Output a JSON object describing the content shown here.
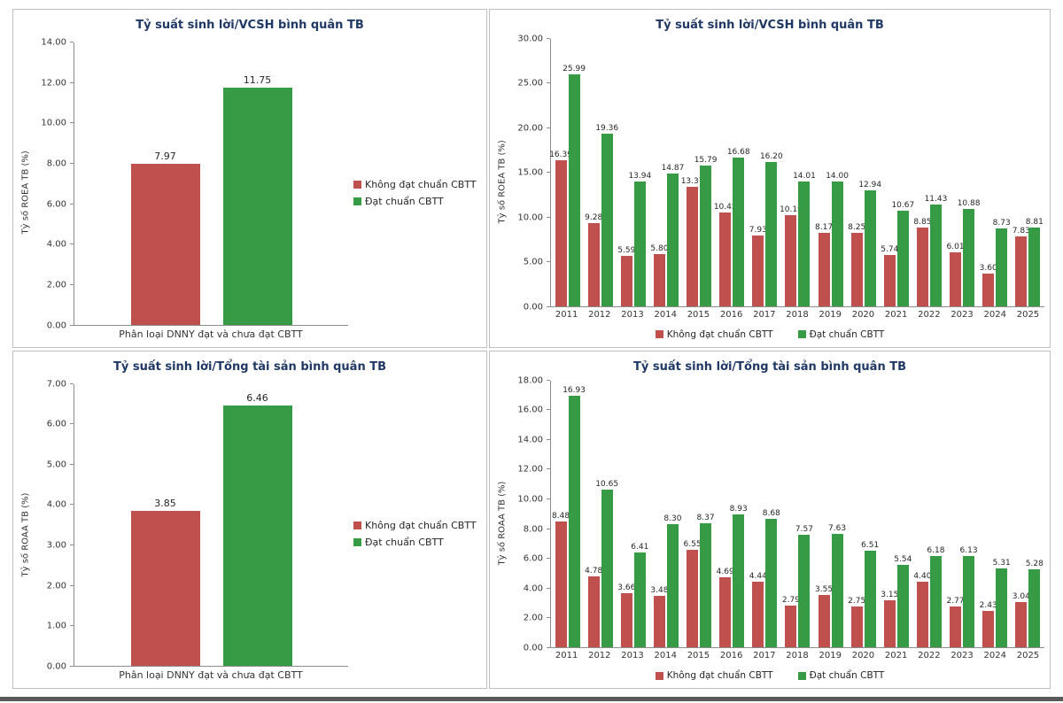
{
  "colors": {
    "not_compliant": "#C0504D",
    "compliant": "#379B45",
    "title": "#203864",
    "axis": "#8C8C8C",
    "panel_border": "#BFBFBF",
    "bottom_rule": "#595959"
  },
  "chart_data": [
    {
      "type": "bar",
      "title": "Tỷ suất sinh lời/VCSH bình quân TB",
      "ylabel": "Tỷ số ROEA TB (%)",
      "xlabel": "Phân loại DNNY đạt và chưa đạt CBTT",
      "ylim": [
        0,
        14
      ],
      "ystep": 2,
      "grid": false,
      "legend_position": "right",
      "categories": [
        ""
      ],
      "series": [
        {
          "name": "Không đạt chuẩn CBTT",
          "color": "#C0504D",
          "values": [
            7.97
          ]
        },
        {
          "name": "Đạt chuẩn CBTT",
          "color": "#379B45",
          "values": [
            11.75
          ]
        }
      ]
    },
    {
      "type": "bar",
      "title": "Tỷ suất sinh lời/VCSH bình quân TB",
      "ylabel": "Tỷ số ROEA TB (%)",
      "ylim": [
        0,
        30
      ],
      "ystep": 5,
      "grid": false,
      "legend_position": "bottom",
      "categories": [
        "2011",
        "2012",
        "2013",
        "2014",
        "2015",
        "2016",
        "2017",
        "2018",
        "2019",
        "2020",
        "2021",
        "2022",
        "2023",
        "2024",
        "2025"
      ],
      "series": [
        {
          "name": "Không đạt chuẩn CBTT",
          "color": "#C0504D",
          "values": [
            16.39,
            9.28,
            5.59,
            5.8,
            13.37,
            10.45,
            7.93,
            10.19,
            8.17,
            8.25,
            5.74,
            8.85,
            6.01,
            3.6,
            7.83
          ]
        },
        {
          "name": "Đạt chuẩn CBTT",
          "color": "#379B45",
          "values": [
            25.99,
            19.36,
            13.94,
            14.87,
            15.79,
            16.68,
            16.2,
            14.01,
            14.0,
            12.94,
            10.67,
            11.43,
            10.88,
            8.73,
            8.81
          ]
        }
      ]
    },
    {
      "type": "bar",
      "title": "Tỷ suất sinh lời/Tổng tài sản bình quân TB",
      "ylabel": "Tỷ số ROAA TB (%)",
      "xlabel": "Phân loại DNNY đạt và chưa đạt CBTT",
      "ylim": [
        0,
        7
      ],
      "ystep": 1,
      "grid": false,
      "legend_position": "right",
      "categories": [
        ""
      ],
      "series": [
        {
          "name": "Không đạt chuẩn CBTT",
          "color": "#C0504D",
          "values": [
            3.85
          ]
        },
        {
          "name": "Đạt chuẩn CBTT",
          "color": "#379B45",
          "values": [
            6.46
          ]
        }
      ]
    },
    {
      "type": "bar",
      "title": "Tỷ suất sinh lời/Tổng tài sản bình quân TB",
      "ylabel": "Tỷ số ROAA TB (%)",
      "ylim": [
        0,
        18
      ],
      "ystep": 2,
      "grid": false,
      "legend_position": "bottom",
      "categories": [
        "2011",
        "2012",
        "2013",
        "2014",
        "2015",
        "2016",
        "2017",
        "2018",
        "2019",
        "2020",
        "2021",
        "2022",
        "2023",
        "2024",
        "2025"
      ],
      "series": [
        {
          "name": "Không đạt chuẩn CBTT",
          "color": "#C0504D",
          "values": [
            8.48,
            4.78,
            3.66,
            3.48,
            6.55,
            4.69,
            4.44,
            2.79,
            3.55,
            2.75,
            3.15,
            4.4,
            2.77,
            2.43,
            3.04
          ]
        },
        {
          "name": "Đạt chuẩn CBTT",
          "color": "#379B45",
          "values": [
            16.93,
            10.65,
            6.41,
            8.3,
            8.37,
            8.93,
            8.68,
            7.57,
            7.63,
            6.51,
            5.54,
            6.18,
            6.13,
            5.31,
            5.28
          ]
        }
      ]
    }
  ]
}
